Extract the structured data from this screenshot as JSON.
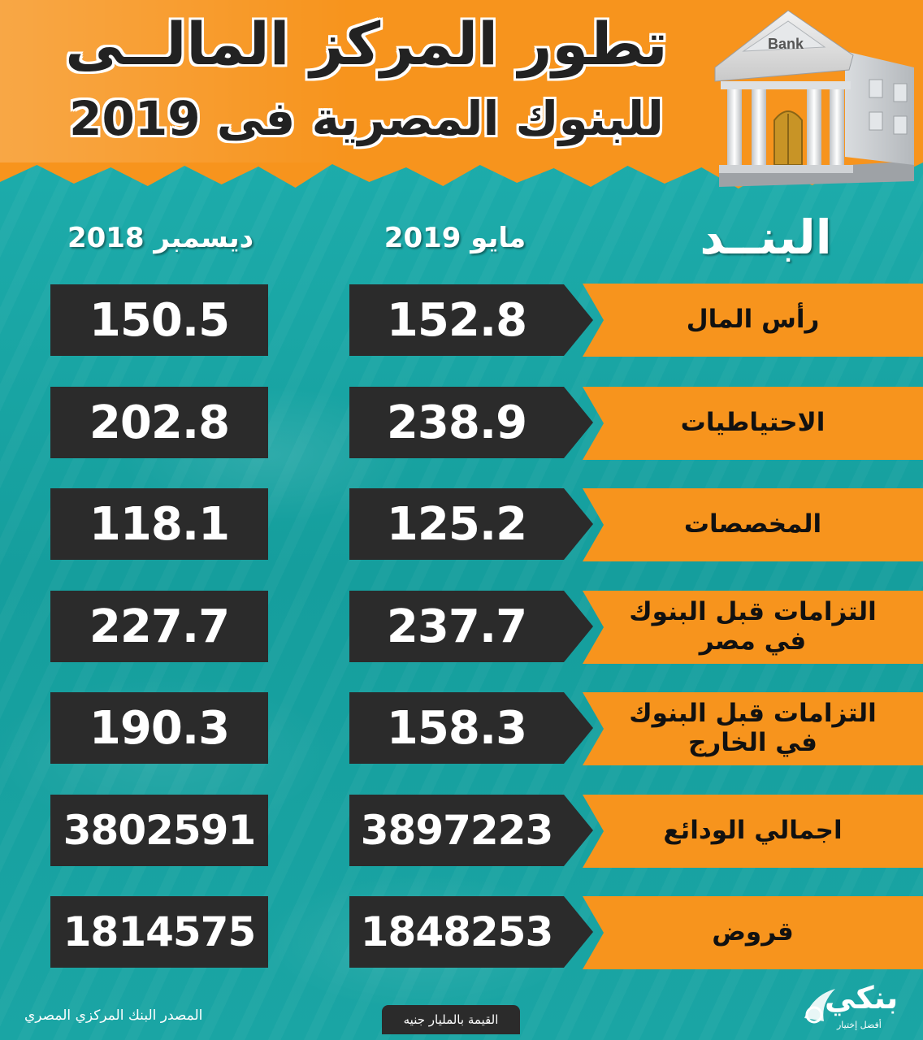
{
  "header": {
    "title_line1": "تطور المركز المالــى",
    "title_line2": "للبنوك المصرية فى 2019",
    "bank_sign": "Bank"
  },
  "columns": {
    "item": "البنــد",
    "may": "مايو 2019",
    "dec": "ديسمبر 2018"
  },
  "rows": [
    {
      "label": "رأس المال",
      "may": "152.8",
      "dec": "150.5"
    },
    {
      "label": "الاحتياطيات",
      "may": "238.9",
      "dec": "202.8"
    },
    {
      "label": "المخصصات",
      "may": "125.2",
      "dec": "118.1"
    },
    {
      "label": "التزامات قبل البنوك في مصر",
      "may": "237.7",
      "dec": "227.7"
    },
    {
      "label": "التزامات قبل البنوك في الخارج",
      "may": "158.3",
      "dec": "190.3"
    },
    {
      "label": "اجمالي الودائع",
      "may": "3897223",
      "dec": "3802591"
    },
    {
      "label": "قروض",
      "may": "1848253",
      "dec": "1814575"
    }
  ],
  "footer": {
    "source": "المصدر البنك المركزي المصري",
    "unit": "القيمة بالمليار جنيه",
    "logo_text": "بنكي",
    "logo_sub": "أفضل إختيار"
  },
  "colors": {
    "orange": "#f7941d",
    "teal": "#1aa7a6",
    "dark": "#2b2b2b"
  }
}
